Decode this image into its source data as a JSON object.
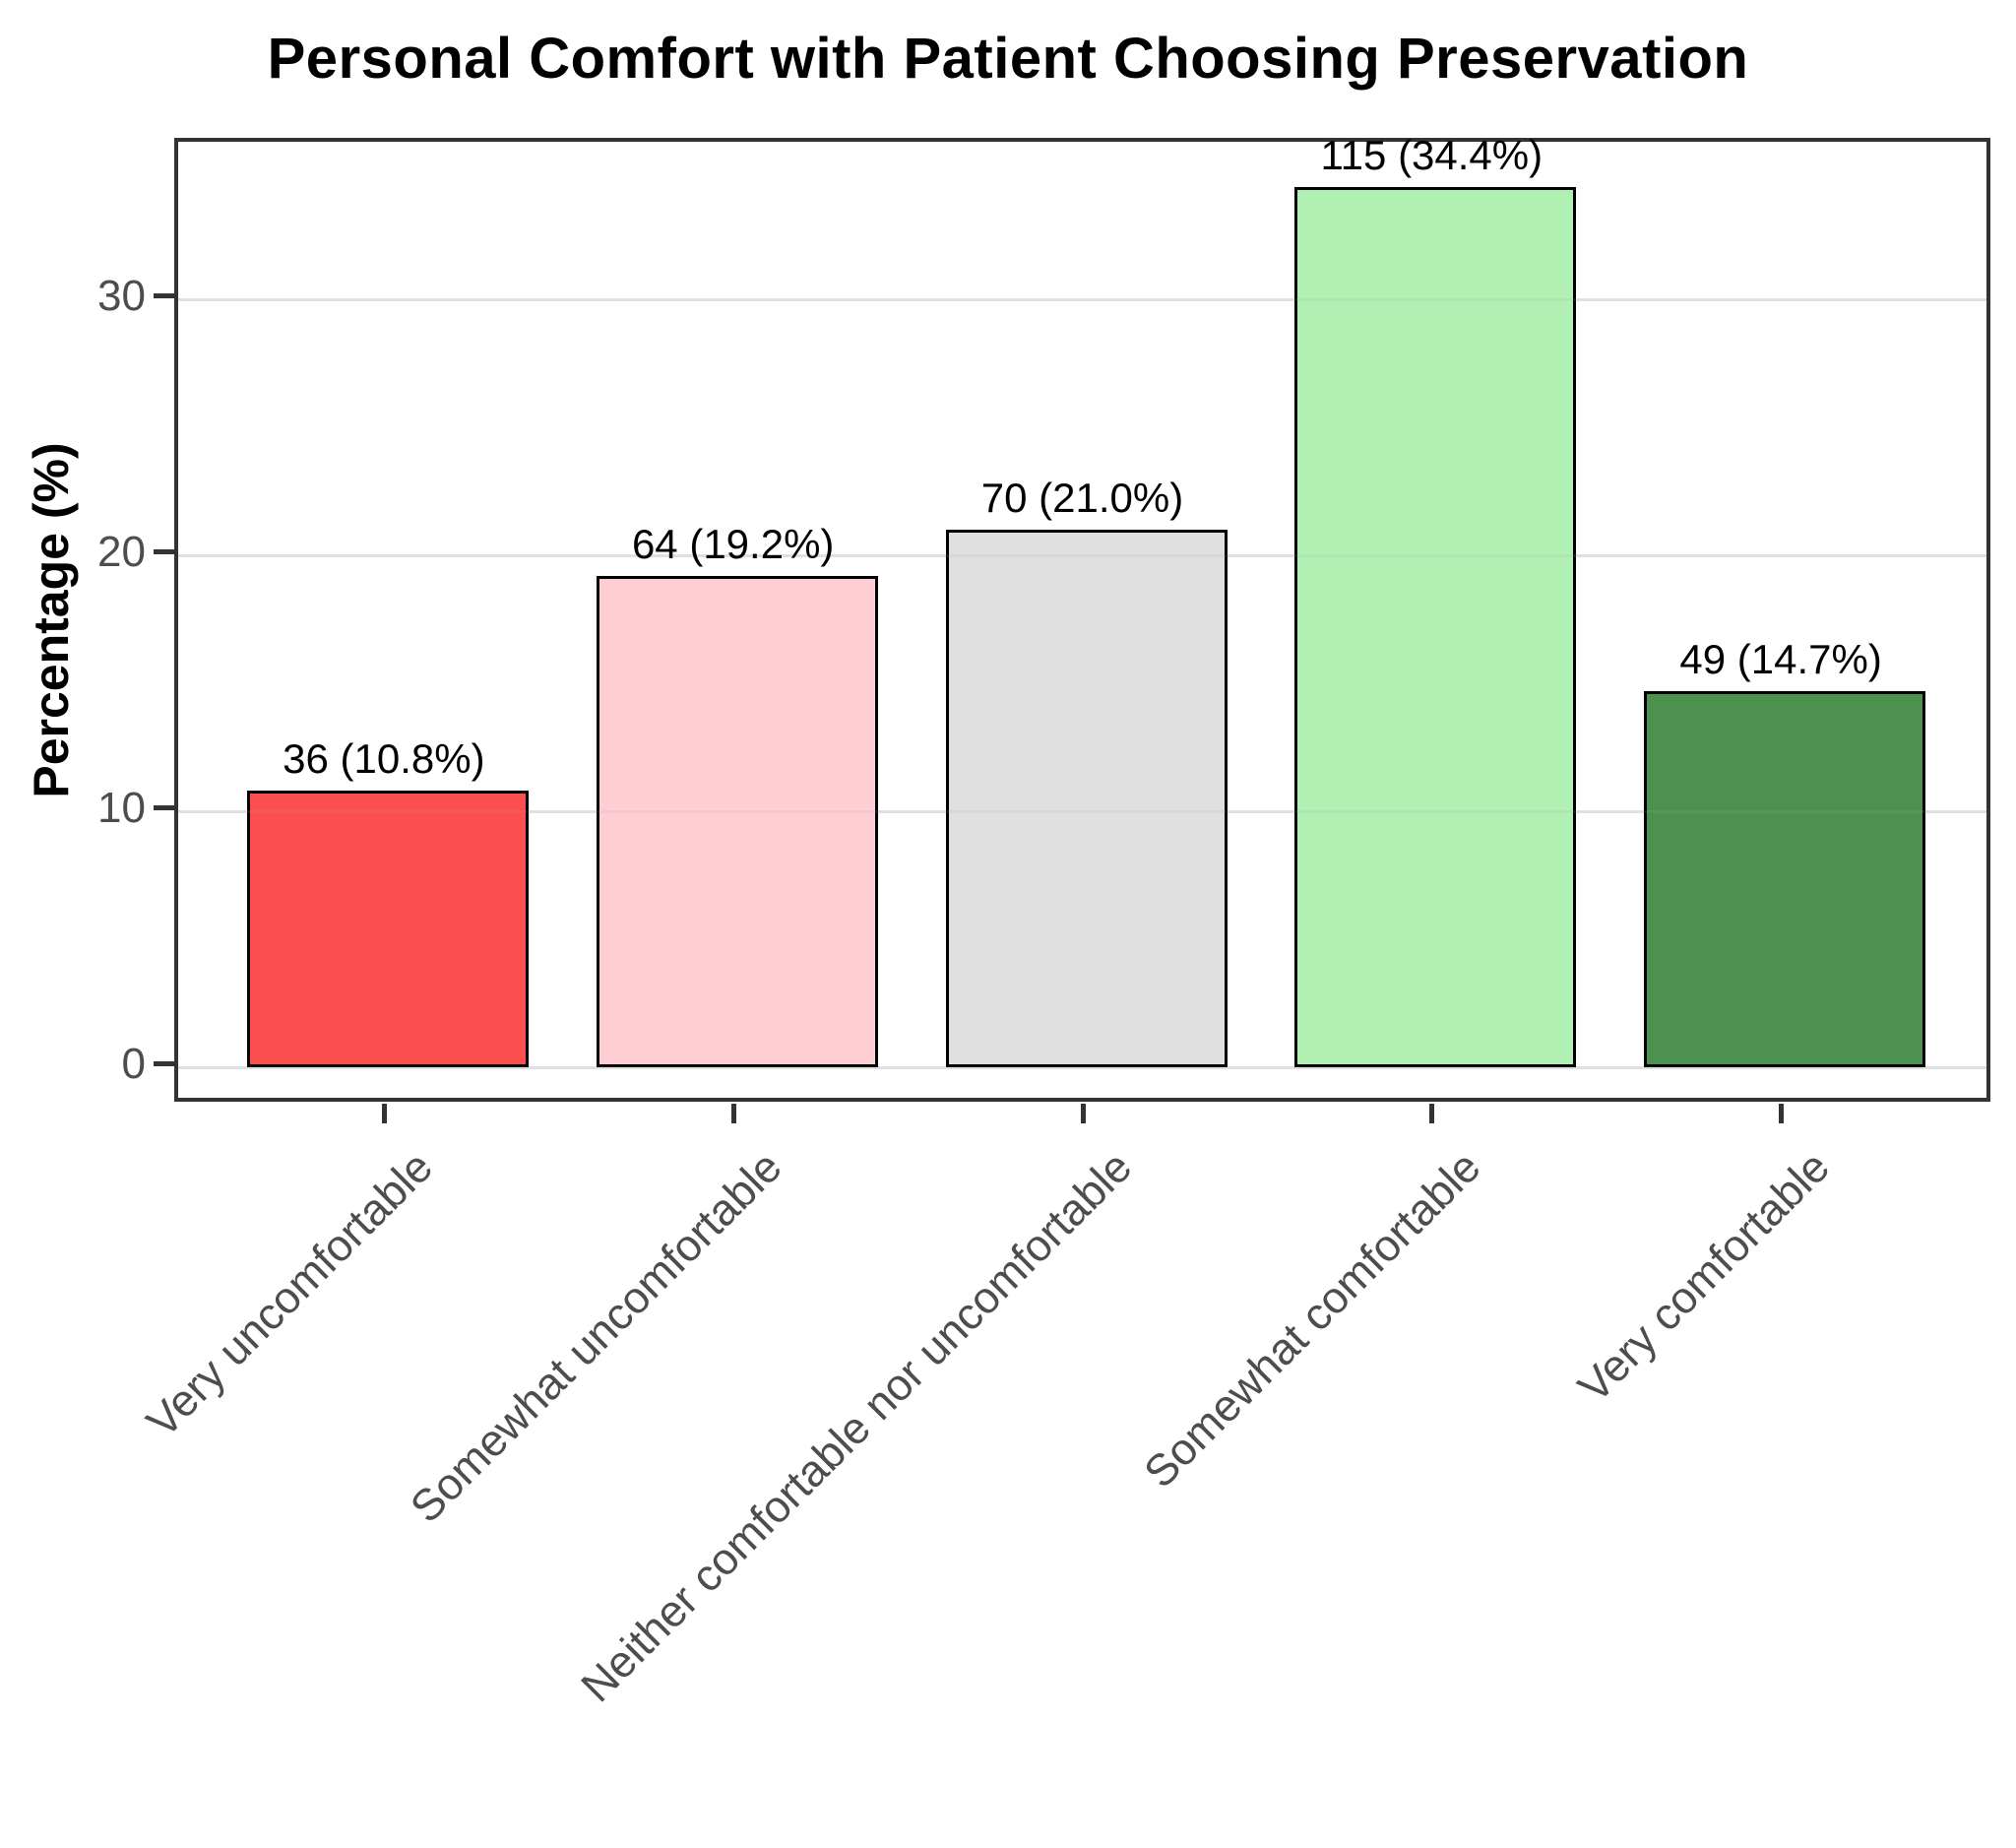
{
  "title": "Personal Comfort with Patient Choosing Preservation",
  "y_axis": {
    "label": "Percentage (%)",
    "tick_labels": [
      "0",
      "10",
      "20",
      "30"
    ]
  },
  "chart_data": {
    "type": "bar",
    "title": "Personal Comfort with Patient Choosing Preservation",
    "xlabel": "",
    "ylabel": "Percentage (%)",
    "ylim": [
      0,
      36.2
    ],
    "yticks": [
      0,
      10,
      20,
      30
    ],
    "grid": "horizontal-major",
    "legend": "none",
    "categories": [
      "Very uncomfortable",
      "Somewhat uncomfortable",
      "Neither comfortable nor uncomfortable",
      "Somewhat comfortable",
      "Very comfortable"
    ],
    "counts": [
      36,
      64,
      70,
      115,
      49
    ],
    "values": [
      10.8,
      19.2,
      21.0,
      34.4,
      14.7
    ],
    "bar_labels": [
      "36 (10.8%)",
      "64 (19.2%)",
      "70 (21.0%)",
      "115 (34.4%)",
      "49 (14.7%)"
    ],
    "bar_colors": [
      "#FC4E4E",
      "#FFCDD4",
      "#E0E0E0",
      "#B1F0B3",
      "#4C9150"
    ],
    "bar_border_color": "#000000",
    "panel_border_color": "#333333",
    "gridline_color": "#EBEBEB",
    "tick_text_color": "#4D4D4D"
  }
}
